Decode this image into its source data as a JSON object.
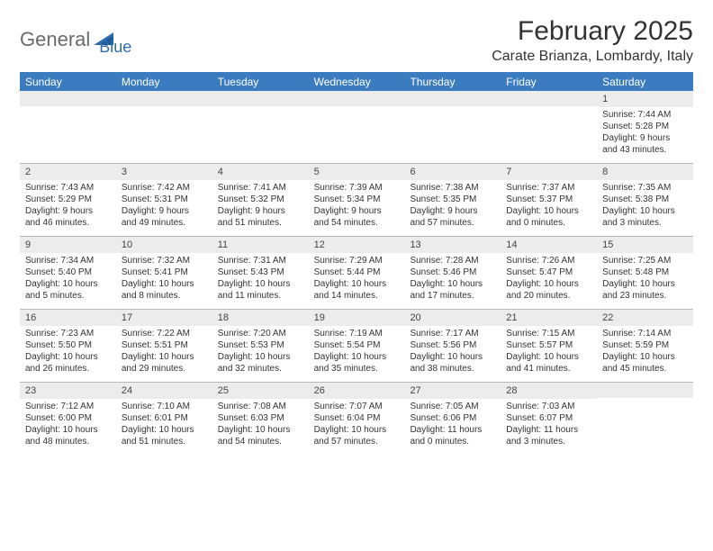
{
  "brand": {
    "part1": "General",
    "part2": "Blue"
  },
  "title": "February 2025",
  "location": "Carate Brianza, Lombardy, Italy",
  "colors": {
    "header_bg": "#3a7cbf",
    "header_text": "#ffffff",
    "daynum_bg": "#ececec",
    "border": "#b8b8b8",
    "text": "#333333",
    "brand_gray": "#6a6a6a",
    "brand_blue": "#2f6fb0"
  },
  "daysOfWeek": [
    "Sunday",
    "Monday",
    "Tuesday",
    "Wednesday",
    "Thursday",
    "Friday",
    "Saturday"
  ],
  "weeks": [
    [
      {
        "n": "",
        "empty": true
      },
      {
        "n": "",
        "empty": true
      },
      {
        "n": "",
        "empty": true
      },
      {
        "n": "",
        "empty": true
      },
      {
        "n": "",
        "empty": true
      },
      {
        "n": "",
        "empty": true
      },
      {
        "n": "1",
        "sr": "Sunrise: 7:44 AM",
        "ss": "Sunset: 5:28 PM",
        "d1": "Daylight: 9 hours",
        "d2": "and 43 minutes."
      }
    ],
    [
      {
        "n": "2",
        "sr": "Sunrise: 7:43 AM",
        "ss": "Sunset: 5:29 PM",
        "d1": "Daylight: 9 hours",
        "d2": "and 46 minutes."
      },
      {
        "n": "3",
        "sr": "Sunrise: 7:42 AM",
        "ss": "Sunset: 5:31 PM",
        "d1": "Daylight: 9 hours",
        "d2": "and 49 minutes."
      },
      {
        "n": "4",
        "sr": "Sunrise: 7:41 AM",
        "ss": "Sunset: 5:32 PM",
        "d1": "Daylight: 9 hours",
        "d2": "and 51 minutes."
      },
      {
        "n": "5",
        "sr": "Sunrise: 7:39 AM",
        "ss": "Sunset: 5:34 PM",
        "d1": "Daylight: 9 hours",
        "d2": "and 54 minutes."
      },
      {
        "n": "6",
        "sr": "Sunrise: 7:38 AM",
        "ss": "Sunset: 5:35 PM",
        "d1": "Daylight: 9 hours",
        "d2": "and 57 minutes."
      },
      {
        "n": "7",
        "sr": "Sunrise: 7:37 AM",
        "ss": "Sunset: 5:37 PM",
        "d1": "Daylight: 10 hours",
        "d2": "and 0 minutes."
      },
      {
        "n": "8",
        "sr": "Sunrise: 7:35 AM",
        "ss": "Sunset: 5:38 PM",
        "d1": "Daylight: 10 hours",
        "d2": "and 3 minutes."
      }
    ],
    [
      {
        "n": "9",
        "sr": "Sunrise: 7:34 AM",
        "ss": "Sunset: 5:40 PM",
        "d1": "Daylight: 10 hours",
        "d2": "and 5 minutes."
      },
      {
        "n": "10",
        "sr": "Sunrise: 7:32 AM",
        "ss": "Sunset: 5:41 PM",
        "d1": "Daylight: 10 hours",
        "d2": "and 8 minutes."
      },
      {
        "n": "11",
        "sr": "Sunrise: 7:31 AM",
        "ss": "Sunset: 5:43 PM",
        "d1": "Daylight: 10 hours",
        "d2": "and 11 minutes."
      },
      {
        "n": "12",
        "sr": "Sunrise: 7:29 AM",
        "ss": "Sunset: 5:44 PM",
        "d1": "Daylight: 10 hours",
        "d2": "and 14 minutes."
      },
      {
        "n": "13",
        "sr": "Sunrise: 7:28 AM",
        "ss": "Sunset: 5:46 PM",
        "d1": "Daylight: 10 hours",
        "d2": "and 17 minutes."
      },
      {
        "n": "14",
        "sr": "Sunrise: 7:26 AM",
        "ss": "Sunset: 5:47 PM",
        "d1": "Daylight: 10 hours",
        "d2": "and 20 minutes."
      },
      {
        "n": "15",
        "sr": "Sunrise: 7:25 AM",
        "ss": "Sunset: 5:48 PM",
        "d1": "Daylight: 10 hours",
        "d2": "and 23 minutes."
      }
    ],
    [
      {
        "n": "16",
        "sr": "Sunrise: 7:23 AM",
        "ss": "Sunset: 5:50 PM",
        "d1": "Daylight: 10 hours",
        "d2": "and 26 minutes."
      },
      {
        "n": "17",
        "sr": "Sunrise: 7:22 AM",
        "ss": "Sunset: 5:51 PM",
        "d1": "Daylight: 10 hours",
        "d2": "and 29 minutes."
      },
      {
        "n": "18",
        "sr": "Sunrise: 7:20 AM",
        "ss": "Sunset: 5:53 PM",
        "d1": "Daylight: 10 hours",
        "d2": "and 32 minutes."
      },
      {
        "n": "19",
        "sr": "Sunrise: 7:19 AM",
        "ss": "Sunset: 5:54 PM",
        "d1": "Daylight: 10 hours",
        "d2": "and 35 minutes."
      },
      {
        "n": "20",
        "sr": "Sunrise: 7:17 AM",
        "ss": "Sunset: 5:56 PM",
        "d1": "Daylight: 10 hours",
        "d2": "and 38 minutes."
      },
      {
        "n": "21",
        "sr": "Sunrise: 7:15 AM",
        "ss": "Sunset: 5:57 PM",
        "d1": "Daylight: 10 hours",
        "d2": "and 41 minutes."
      },
      {
        "n": "22",
        "sr": "Sunrise: 7:14 AM",
        "ss": "Sunset: 5:59 PM",
        "d1": "Daylight: 10 hours",
        "d2": "and 45 minutes."
      }
    ],
    [
      {
        "n": "23",
        "sr": "Sunrise: 7:12 AM",
        "ss": "Sunset: 6:00 PM",
        "d1": "Daylight: 10 hours",
        "d2": "and 48 minutes."
      },
      {
        "n": "24",
        "sr": "Sunrise: 7:10 AM",
        "ss": "Sunset: 6:01 PM",
        "d1": "Daylight: 10 hours",
        "d2": "and 51 minutes."
      },
      {
        "n": "25",
        "sr": "Sunrise: 7:08 AM",
        "ss": "Sunset: 6:03 PM",
        "d1": "Daylight: 10 hours",
        "d2": "and 54 minutes."
      },
      {
        "n": "26",
        "sr": "Sunrise: 7:07 AM",
        "ss": "Sunset: 6:04 PM",
        "d1": "Daylight: 10 hours",
        "d2": "and 57 minutes."
      },
      {
        "n": "27",
        "sr": "Sunrise: 7:05 AM",
        "ss": "Sunset: 6:06 PM",
        "d1": "Daylight: 11 hours",
        "d2": "and 0 minutes."
      },
      {
        "n": "28",
        "sr": "Sunrise: 7:03 AM",
        "ss": "Sunset: 6:07 PM",
        "d1": "Daylight: 11 hours",
        "d2": "and 3 minutes."
      },
      {
        "n": "",
        "empty": true
      }
    ]
  ]
}
